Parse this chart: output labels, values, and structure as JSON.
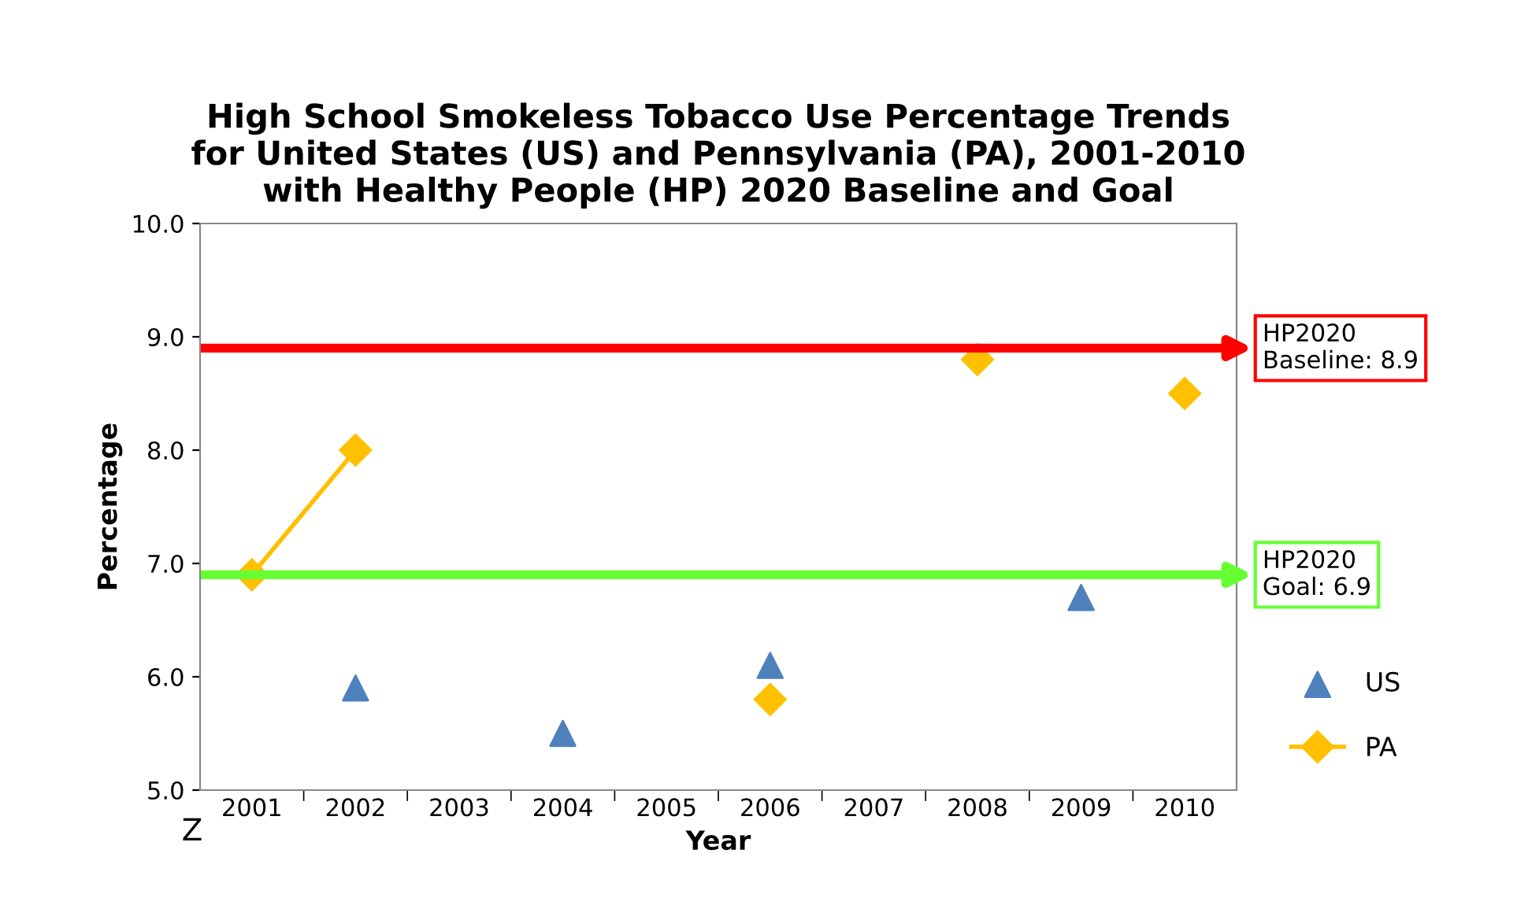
{
  "chart_data": {
    "type": "line",
    "title": "High School Smokeless Tobacco Use Percentage Trends\nfor United States (US) and Pennsylvania (PA), 2001-2010\nwith Healthy People (HP) 2020 Baseline and Goal",
    "xlabel": "Year",
    "ylabel": "Percentage",
    "categories": [
      "2001",
      "2002",
      "2003",
      "2004",
      "2005",
      "2006",
      "2007",
      "2008",
      "2009",
      "2010"
    ],
    "series": [
      {
        "name": "US",
        "type": "scatter",
        "color": "#4f81bd",
        "marker": "triangle",
        "values": [
          null,
          5.9,
          null,
          5.5,
          null,
          6.1,
          null,
          null,
          6.7,
          null
        ]
      },
      {
        "name": "PA",
        "color": "#ffc000",
        "marker": "diamond",
        "values": [
          6.9,
          8.0,
          null,
          null,
          null,
          5.8,
          null,
          8.8,
          null,
          8.5
        ]
      }
    ],
    "ylim": [
      5.0,
      10.0
    ],
    "yticks": [
      {
        "value": 5.0,
        "label": "5.0"
      },
      {
        "value": 6.0,
        "label": "6.0"
      },
      {
        "value": 7.0,
        "label": "7.0"
      },
      {
        "value": 8.0,
        "label": "8.0"
      },
      {
        "value": 9.0,
        "label": "9.0"
      },
      {
        "value": 10.0,
        "label": "10.0"
      }
    ],
    "ref_lines": [
      {
        "axis": "y",
        "value": 8.9,
        "label": "HP2020\nBaseline: 8.9",
        "color": "#ff0000"
      },
      {
        "axis": "y",
        "value": 6.9,
        "label": "HP2020\nGoal: 6.9",
        "color": "#66ff33"
      }
    ],
    "annotations": [
      "Z"
    ],
    "legend": "right",
    "grid": false,
    "line_style": "solid"
  }
}
